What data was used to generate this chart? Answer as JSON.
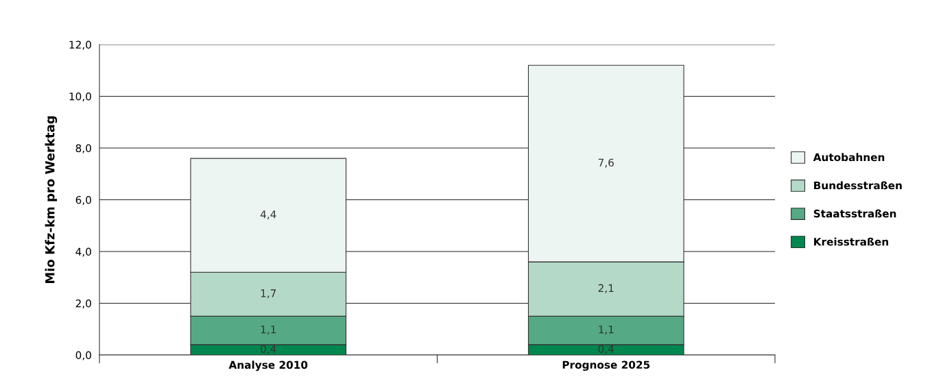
{
  "chart_data": {
    "type": "bar",
    "stacked": true,
    "ylabel": "Mio Kfz-km pro Werktag",
    "categories": [
      "Analyse 2010",
      "Prognose 2025"
    ],
    "series": [
      {
        "name": "Kreisstraßen",
        "color": "#00874f",
        "values": [
          0.4,
          0.4
        ],
        "value_labels": [
          "0,4",
          "0,4"
        ]
      },
      {
        "name": "Staatsstraßen",
        "color": "#55a984",
        "values": [
          1.1,
          1.1
        ],
        "value_labels": [
          "1,1",
          "1,1"
        ]
      },
      {
        "name": "Bundesstraßen",
        "color": "#b5d9c8",
        "values": [
          1.7,
          2.1
        ],
        "value_labels": [
          "1,7",
          "2,1"
        ]
      },
      {
        "name": "Autobahnen",
        "color": "#edf5f2",
        "values": [
          4.4,
          7.6
        ],
        "value_labels": [
          "4,4",
          "7,6"
        ]
      }
    ],
    "ylim": [
      0,
      12
    ],
    "yticks": [
      {
        "value": 0,
        "label": "0,0"
      },
      {
        "value": 2,
        "label": "2,0"
      },
      {
        "value": 4,
        "label": "4,0"
      },
      {
        "value": 6,
        "label": "6,0"
      },
      {
        "value": 8,
        "label": "8,0"
      },
      {
        "value": 10,
        "label": "10,0"
      },
      {
        "value": 12,
        "label": "12,0"
      }
    ],
    "grid": "y",
    "legend": "right"
  }
}
